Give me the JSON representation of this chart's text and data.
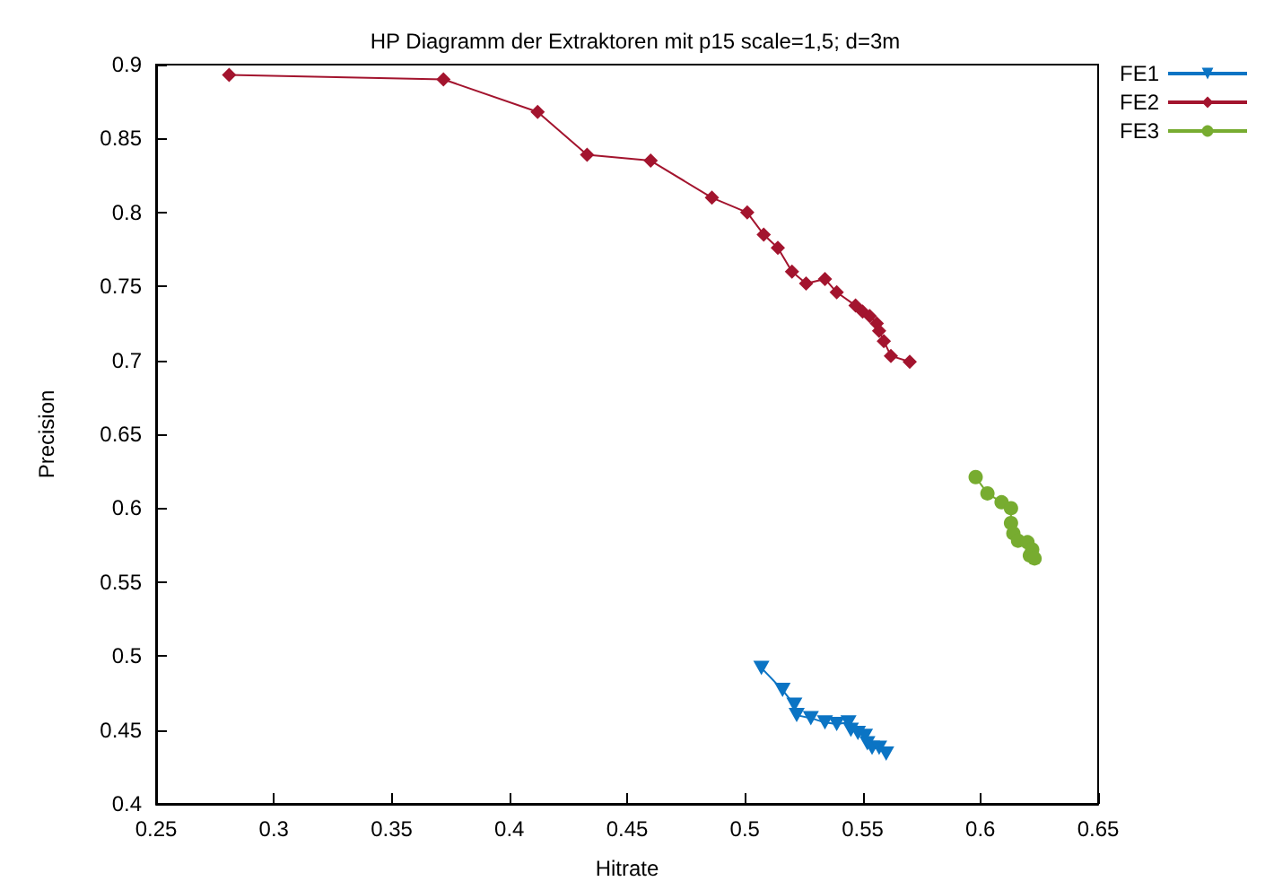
{
  "chart_data": {
    "type": "line",
    "title": "HP Diagramm der Extraktoren mit p15 scale=1,5; d=3m",
    "xlabel": "Hitrate",
    "ylabel": "Precision",
    "xlim": [
      0.25,
      0.65
    ],
    "xticks": [
      0.25,
      0.3,
      0.35,
      0.4,
      0.45,
      0.5,
      0.55,
      0.6,
      0.65
    ],
    "ylim": [
      0.4,
      0.9
    ],
    "yticks": [
      0.4,
      0.45,
      0.5,
      0.55,
      0.6,
      0.65,
      0.7,
      0.75,
      0.8,
      0.85,
      0.9
    ],
    "grid": false,
    "legend": "top right",
    "line_style": "solid",
    "series": [
      {
        "name": "FE1",
        "color": "#0b74c4",
        "marker": "triangle",
        "x": [
          0.507,
          0.516,
          0.521,
          0.522,
          0.528,
          0.534,
          0.539,
          0.544,
          0.545,
          0.548,
          0.551,
          0.552,
          0.554,
          0.557,
          0.56
        ],
        "values": [
          0.492,
          0.477,
          0.467,
          0.46,
          0.458,
          0.455,
          0.454,
          0.455,
          0.45,
          0.448,
          0.446,
          0.441,
          0.438,
          0.438,
          0.434
        ]
      },
      {
        "name": "FE2",
        "color": "#a3142e",
        "marker": "diamond",
        "x": [
          0.281,
          0.372,
          0.412,
          0.433,
          0.46,
          0.486,
          0.501,
          0.508,
          0.514,
          0.52,
          0.526,
          0.534,
          0.539,
          0.547,
          0.55,
          0.553,
          0.556,
          0.557,
          0.559,
          0.562,
          0.57
        ],
        "values": [
          0.893,
          0.89,
          0.868,
          0.839,
          0.835,
          0.81,
          0.8,
          0.785,
          0.776,
          0.76,
          0.752,
          0.755,
          0.746,
          0.737,
          0.733,
          0.73,
          0.725,
          0.72,
          0.713,
          0.703,
          0.699
        ]
      },
      {
        "name": "FE3",
        "color": "#77ac30",
        "marker": "circle",
        "x": [
          0.598,
          0.603,
          0.609,
          0.613,
          0.613,
          0.614,
          0.616,
          0.62,
          0.622,
          0.621,
          0.623
        ],
        "values": [
          0.621,
          0.61,
          0.604,
          0.6,
          0.59,
          0.583,
          0.578,
          0.577,
          0.572,
          0.568,
          0.566
        ]
      }
    ]
  }
}
